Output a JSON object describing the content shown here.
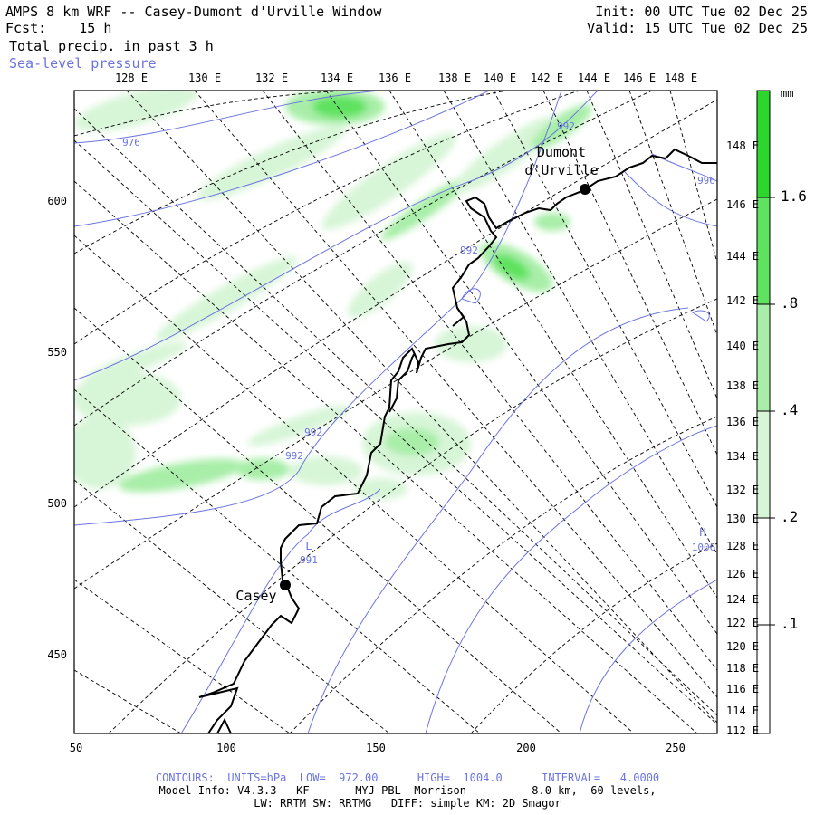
{
  "header": {
    "title": "AMPS 8 km WRF -- Casey-Dumont d'Urville Window",
    "fcst": "Fcst:    15 h",
    "field": "Total precip. in past 3 h",
    "overlay": "Sea-level pressure",
    "init": "Init: 00 UTC Tue 02 Dec 25",
    "valid": "Valid: 15 UTC Tue 02 Dec 25"
  },
  "map": {
    "top_lon_labels": [
      "128 E",
      "130 E",
      "132 E",
      "134 E",
      "136 E",
      "138 E",
      "140 E",
      "142 E",
      "144 E",
      "146 E",
      "148 E"
    ],
    "right_lon_labels": [
      "148 E",
      "146 E",
      "144 E",
      "142 E",
      "140 E",
      "138 E",
      "136 E",
      "134 E",
      "132 E",
      "130 E",
      "128 E",
      "126 E",
      "124 E",
      "122 E",
      "120 E",
      "118 E",
      "116 E",
      "114 E",
      "112 E"
    ],
    "x_axis_labels": [
      "50",
      "100",
      "150",
      "200",
      "250"
    ],
    "y_axis_labels": [
      "600",
      "550",
      "500",
      "450"
    ],
    "stations": [
      {
        "name_line1": "Dumont",
        "name_line2": "d'Urville"
      },
      {
        "name_line1": "Casey",
        "name_line2": ""
      }
    ],
    "contour_labels": [
      "992",
      "992",
      "992",
      "992",
      "976",
      "996"
    ],
    "low_marker": {
      "letter": "L",
      "value": "991"
    },
    "high_marker": {
      "letter": "H",
      "value": "1006"
    }
  },
  "colorbar": {
    "unit": "mm",
    "labels": [
      "1.6",
      ".8",
      ".4",
      ".2",
      ".1"
    ],
    "colors": [
      "#2cd62c",
      "#5fe25f",
      "#a8eea8",
      "#d7f5d7",
      "#ffffff"
    ]
  },
  "footer": {
    "contours": "CONTOURS:  UNITS=hPa  LOW=  972.00      HIGH=  1004.0      INTERVAL=   4.0000",
    "model": "Model Info: V4.3.3   KF       MYJ PBL  Morrison          8.0 km,  60 levels,",
    "physics": "LW: RRTM SW: RRTMG   DIFF: simple KM: 2D Smagor"
  },
  "colors": {
    "contour": "#6b74e0",
    "coast": "#000000",
    "precip_light": "#d7f5d7",
    "precip_mid": "#a8eea8",
    "precip_heavy": "#5fe25f"
  }
}
